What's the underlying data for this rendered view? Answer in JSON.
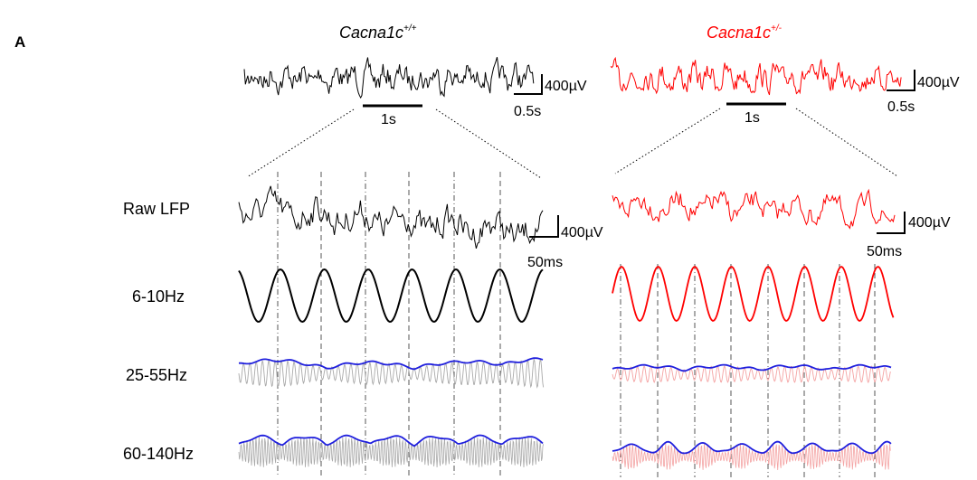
{
  "panel_label": "A",
  "genotypes": {
    "wt": {
      "name": "Cacna1c",
      "sup": "+/+",
      "color": "#000000"
    },
    "het": {
      "name": "Cacna1c",
      "sup": "+/-",
      "color": "#ff0000"
    }
  },
  "scale_bars": {
    "top_amp": "400µV",
    "top_time": "0.5s",
    "zoom_window": "1s",
    "raw_amp": "400µV",
    "raw_time": "50ms"
  },
  "row_labels": [
    "Raw LFP",
    "6-10Hz",
    "25-55Hz",
    "60-140Hz"
  ],
  "colors": {
    "envelope": "#1f1fdd",
    "gamma_wt": "#a9a9a9",
    "gamma_het": "#f4a3a3",
    "cycle_marker": "#555555"
  }
}
